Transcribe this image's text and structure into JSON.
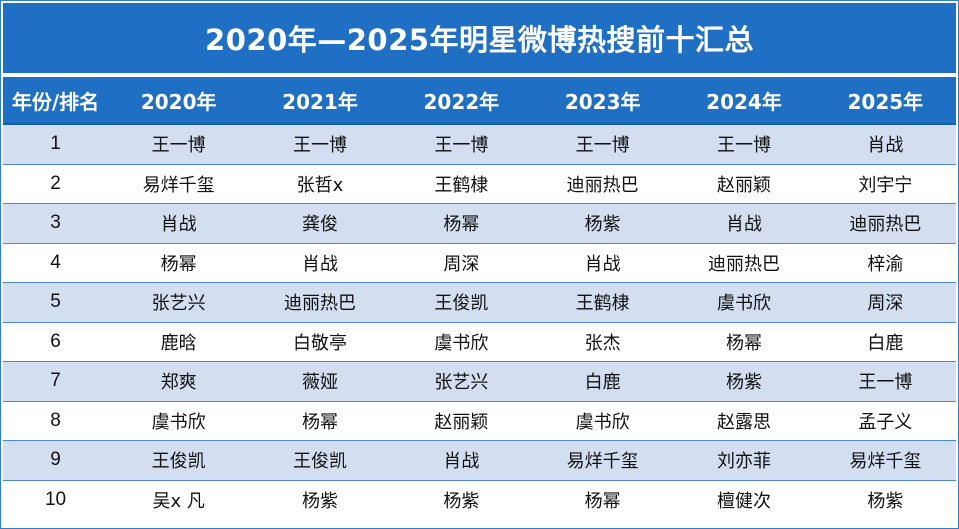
{
  "title": "2020年—2025年明星微博热搜前十汇总",
  "header": [
    "年份/排名",
    "2020年",
    "2021年",
    "2022年",
    "2023年",
    "2024年",
    "2025年"
  ],
  "rows": [
    {
      "rank": "1",
      "cells": [
        "王一博",
        "王一博",
        "王一博",
        "王一博",
        "王一博",
        "肖战"
      ]
    },
    {
      "rank": "2",
      "cells": [
        "易烊千玺",
        "张哲x",
        "王鹤棣",
        "迪丽热巴",
        "赵丽颖",
        "刘宇宁"
      ]
    },
    {
      "rank": "3",
      "cells": [
        "肖战",
        "龚俊",
        "杨幂",
        "杨紫",
        "肖战",
        "迪丽热巴"
      ]
    },
    {
      "rank": "4",
      "cells": [
        "杨幂",
        "肖战",
        "周深",
        "肖战",
        "迪丽热巴",
        "梓渝"
      ]
    },
    {
      "rank": "5",
      "cells": [
        "张艺兴",
        "迪丽热巴",
        "王俊凯",
        "王鹤棣",
        "虞书欣",
        "周深"
      ]
    },
    {
      "rank": "6",
      "cells": [
        "鹿晗",
        "白敬亭",
        "虞书欣",
        "张杰",
        "杨幂",
        "白鹿"
      ]
    },
    {
      "rank": "7",
      "cells": [
        "郑爽",
        "薇娅",
        "张艺兴",
        "白鹿",
        "杨紫",
        "王一博"
      ]
    },
    {
      "rank": "8",
      "cells": [
        "虞书欣",
        "杨幂",
        "赵丽颖",
        "虞书欣",
        "赵露思",
        "孟子义"
      ]
    },
    {
      "rank": "9",
      "cells": [
        "王俊凯",
        "王俊凯",
        "肖战",
        "易烊千玺",
        "刘亦菲",
        "易烊千玺"
      ]
    },
    {
      "rank": "10",
      "cells": [
        "吴x 凡",
        "杨紫",
        "杨紫",
        "杨幂",
        "檀健次",
        "杨紫"
      ]
    }
  ],
  "colors": {
    "header_bg": "#1f6fc4",
    "row_alt_bg": "#d3dff0",
    "row_bg": "#ffffff",
    "border": "#4a8ad4"
  }
}
